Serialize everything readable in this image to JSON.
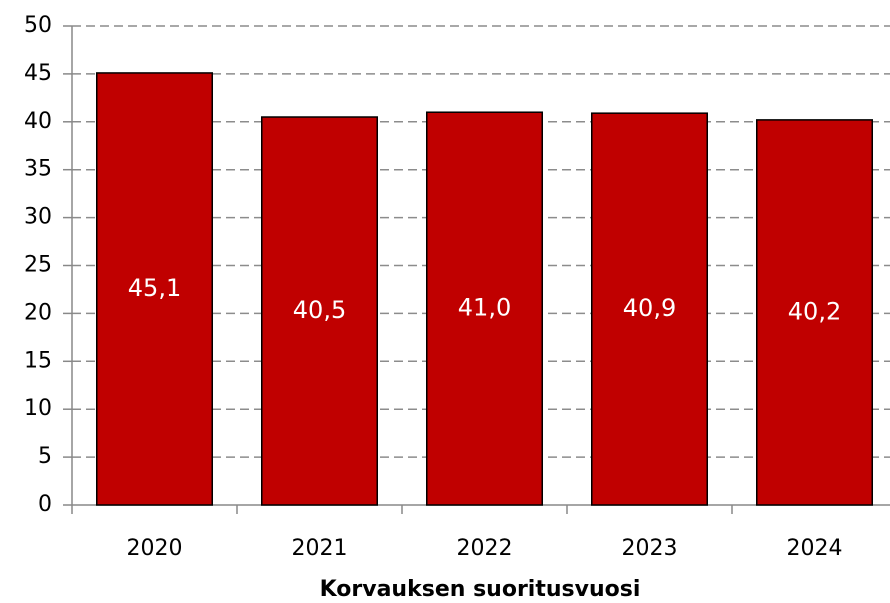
{
  "chart_data": {
    "type": "bar",
    "x_label": "Korvauksen suoritusvuosi",
    "categories": [
      "2020",
      "2021",
      "2022",
      "2023",
      "2024"
    ],
    "values": [
      45.1,
      40.5,
      41.0,
      40.9,
      40.2
    ],
    "value_labels": [
      "45,1",
      "40,5",
      "41,0",
      "40,9",
      "40,2"
    ],
    "color": "#c00000",
    "ylim": [
      0,
      50
    ],
    "yticks": [
      0,
      5,
      10,
      15,
      20,
      25,
      30,
      35,
      40,
      45,
      50
    ],
    "grid": true
  }
}
